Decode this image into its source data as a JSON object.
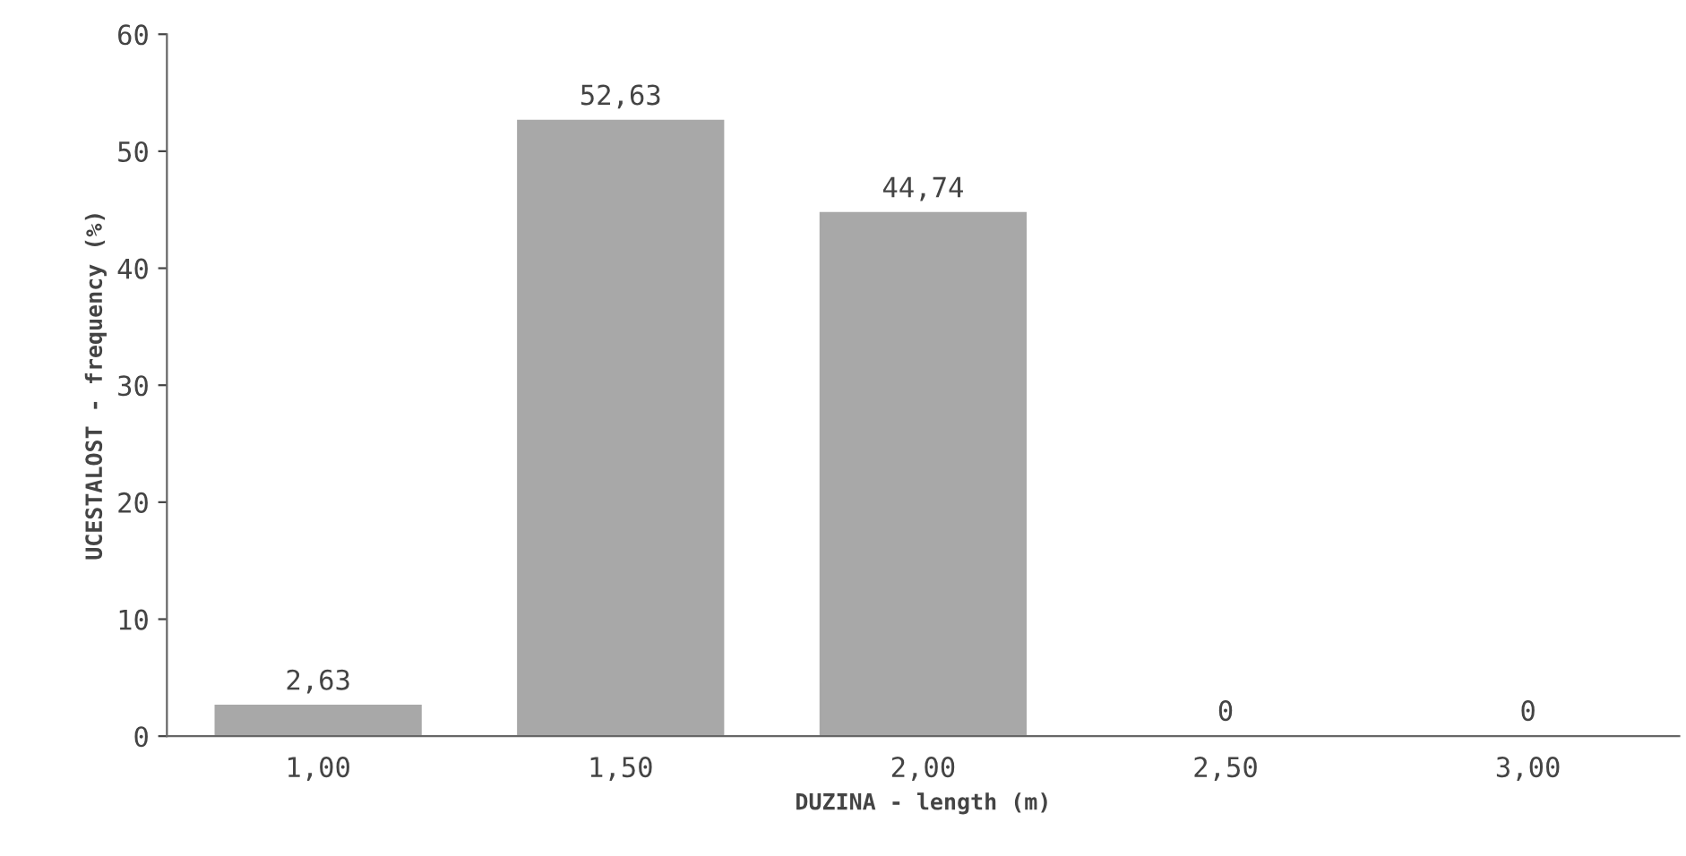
{
  "chart_data": {
    "type": "bar",
    "xlabel": "DUZINA - length (m)",
    "ylabel": "UCESTALOST - frequency (%)",
    "categories": [
      "1,00",
      "1,50",
      "2,00",
      "2,50",
      "3,00"
    ],
    "values": [
      2.63,
      52.63,
      44.74,
      0,
      0
    ],
    "value_labels": [
      "2,63",
      "52,63",
      "44,74",
      "0",
      "0"
    ],
    "color": "#a8a8a8",
    "ylim": [
      0,
      60
    ],
    "yticks": [
      0,
      10,
      20,
      30,
      40,
      50,
      60
    ],
    "grid": false
  }
}
